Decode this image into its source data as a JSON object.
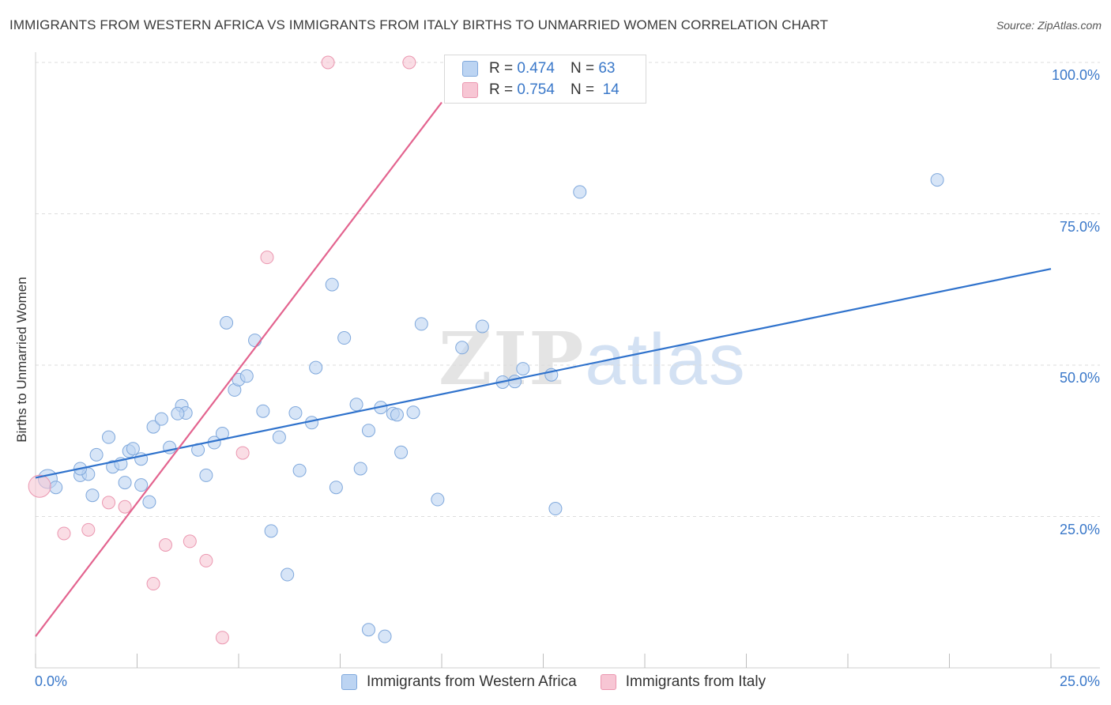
{
  "header": {
    "title": "IMMIGRANTS FROM WESTERN AFRICA VS IMMIGRANTS FROM ITALY BIRTHS TO UNMARRIED WOMEN CORRELATION CHART",
    "source": "Source: ZipAtlas.com"
  },
  "legend": {
    "r_label": "R = ",
    "n_label": "N = ",
    "series1_r": "0.474",
    "series1_n": "63",
    "series2_r": "0.754",
    "series2_n": "14"
  },
  "watermark": {
    "zip": "ZIP",
    "atlas": "atlas"
  },
  "chart_data": {
    "type": "scatter",
    "title": "IMMIGRANTS FROM WESTERN AFRICA VS IMMIGRANTS FROM ITALY BIRTHS TO UNMARRIED WOMEN CORRELATION CHART",
    "xlabel": "",
    "ylabel": "Births to Unmarried Women",
    "xlim": [
      0,
      25
    ],
    "ylim": [
      0,
      100
    ],
    "x_tick_labels": [
      "0.0%",
      "25.0%"
    ],
    "y_tick_labels": [
      "25.0%",
      "50.0%",
      "75.0%",
      "100.0%"
    ],
    "y_ticks": [
      25,
      50,
      75,
      100
    ],
    "grid": true,
    "legend_position": "top-center",
    "colors": {
      "series1_fill": "#bcd4f2",
      "series1_stroke": "#7fa8dc",
      "series1_line": "#2f72cc",
      "series2_fill": "#f7c6d4",
      "series2_stroke": "#eb97b0",
      "series2_line": "#e3648f",
      "axis_text": "#3a78c9",
      "grid": "#dddddd"
    },
    "series": [
      {
        "name": "Immigrants from Western Africa",
        "R": 0.474,
        "N": 63,
        "trend": {
          "x": [
            0,
            25
          ],
          "y": [
            31.4,
            65.9
          ]
        },
        "points": [
          {
            "x": 0.3,
            "y": 31.2
          },
          {
            "x": 0.5,
            "y": 29.8
          },
          {
            "x": 1.1,
            "y": 31.8
          },
          {
            "x": 1.3,
            "y": 32.0
          },
          {
            "x": 1.1,
            "y": 32.9
          },
          {
            "x": 1.5,
            "y": 35.2
          },
          {
            "x": 1.4,
            "y": 28.5
          },
          {
            "x": 1.8,
            "y": 38.1
          },
          {
            "x": 1.9,
            "y": 33.2
          },
          {
            "x": 2.3,
            "y": 35.8
          },
          {
            "x": 2.1,
            "y": 33.7
          },
          {
            "x": 2.6,
            "y": 34.5
          },
          {
            "x": 2.4,
            "y": 36.2
          },
          {
            "x": 2.2,
            "y": 30.6
          },
          {
            "x": 2.6,
            "y": 30.2
          },
          {
            "x": 2.8,
            "y": 27.4
          },
          {
            "x": 2.9,
            "y": 39.8
          },
          {
            "x": 3.1,
            "y": 41.1
          },
          {
            "x": 3.3,
            "y": 36.4
          },
          {
            "x": 3.6,
            "y": 43.3
          },
          {
            "x": 3.7,
            "y": 42.1
          },
          {
            "x": 3.5,
            "y": 42.0
          },
          {
            "x": 4.0,
            "y": 36.0
          },
          {
            "x": 4.2,
            "y": 31.8
          },
          {
            "x": 4.4,
            "y": 37.2
          },
          {
            "x": 4.6,
            "y": 38.7
          },
          {
            "x": 4.7,
            "y": 57.0
          },
          {
            "x": 4.9,
            "y": 45.9
          },
          {
            "x": 5.0,
            "y": 47.6
          },
          {
            "x": 5.2,
            "y": 48.2
          },
          {
            "x": 5.4,
            "y": 54.1
          },
          {
            "x": 5.6,
            "y": 42.4
          },
          {
            "x": 5.8,
            "y": 22.6
          },
          {
            "x": 6.0,
            "y": 38.1
          },
          {
            "x": 6.2,
            "y": 15.4
          },
          {
            "x": 6.4,
            "y": 42.1
          },
          {
            "x": 6.5,
            "y": 32.6
          },
          {
            "x": 6.8,
            "y": 40.5
          },
          {
            "x": 6.9,
            "y": 49.6
          },
          {
            "x": 7.3,
            "y": 63.3
          },
          {
            "x": 7.4,
            "y": 29.8
          },
          {
            "x": 7.6,
            "y": 54.5
          },
          {
            "x": 7.9,
            "y": 43.5
          },
          {
            "x": 8.0,
            "y": 32.9
          },
          {
            "x": 8.2,
            "y": 39.2
          },
          {
            "x": 8.2,
            "y": 6.3
          },
          {
            "x": 8.5,
            "y": 43.0
          },
          {
            "x": 8.6,
            "y": 5.2
          },
          {
            "x": 8.8,
            "y": 42.0
          },
          {
            "x": 8.9,
            "y": 41.8
          },
          {
            "x": 9.0,
            "y": 35.6
          },
          {
            "x": 9.3,
            "y": 42.2
          },
          {
            "x": 9.5,
            "y": 56.8
          },
          {
            "x": 9.9,
            "y": 27.8
          },
          {
            "x": 10.5,
            "y": 52.9
          },
          {
            "x": 11.0,
            "y": 56.4
          },
          {
            "x": 11.5,
            "y": 47.2
          },
          {
            "x": 11.8,
            "y": 47.3
          },
          {
            "x": 12.0,
            "y": 49.4
          },
          {
            "x": 12.7,
            "y": 48.4
          },
          {
            "x": 12.8,
            "y": 26.3
          },
          {
            "x": 13.4,
            "y": 78.6
          },
          {
            "x": 22.2,
            "y": 80.6
          }
        ]
      },
      {
        "name": "Immigrants from Italy",
        "R": 0.754,
        "N": 14,
        "trend": {
          "x": [
            0,
            10
          ],
          "y": [
            5.2,
            93.4
          ]
        },
        "points": [
          {
            "x": 0.1,
            "y": 30.0
          },
          {
            "x": 0.7,
            "y": 22.2
          },
          {
            "x": 1.3,
            "y": 22.8
          },
          {
            "x": 1.8,
            "y": 27.3
          },
          {
            "x": 2.2,
            "y": 26.6
          },
          {
            "x": 2.9,
            "y": 13.9
          },
          {
            "x": 3.2,
            "y": 20.3
          },
          {
            "x": 3.8,
            "y": 20.9
          },
          {
            "x": 4.2,
            "y": 17.7
          },
          {
            "x": 4.6,
            "y": 5.0
          },
          {
            "x": 5.1,
            "y": 35.5
          },
          {
            "x": 5.7,
            "y": 67.8
          },
          {
            "x": 7.2,
            "y": 100.0
          },
          {
            "x": 9.2,
            "y": 100.0
          }
        ]
      }
    ]
  },
  "legend_bottom": {
    "series1": "Immigrants from Western Africa",
    "series2": "Immigrants from Italy"
  }
}
